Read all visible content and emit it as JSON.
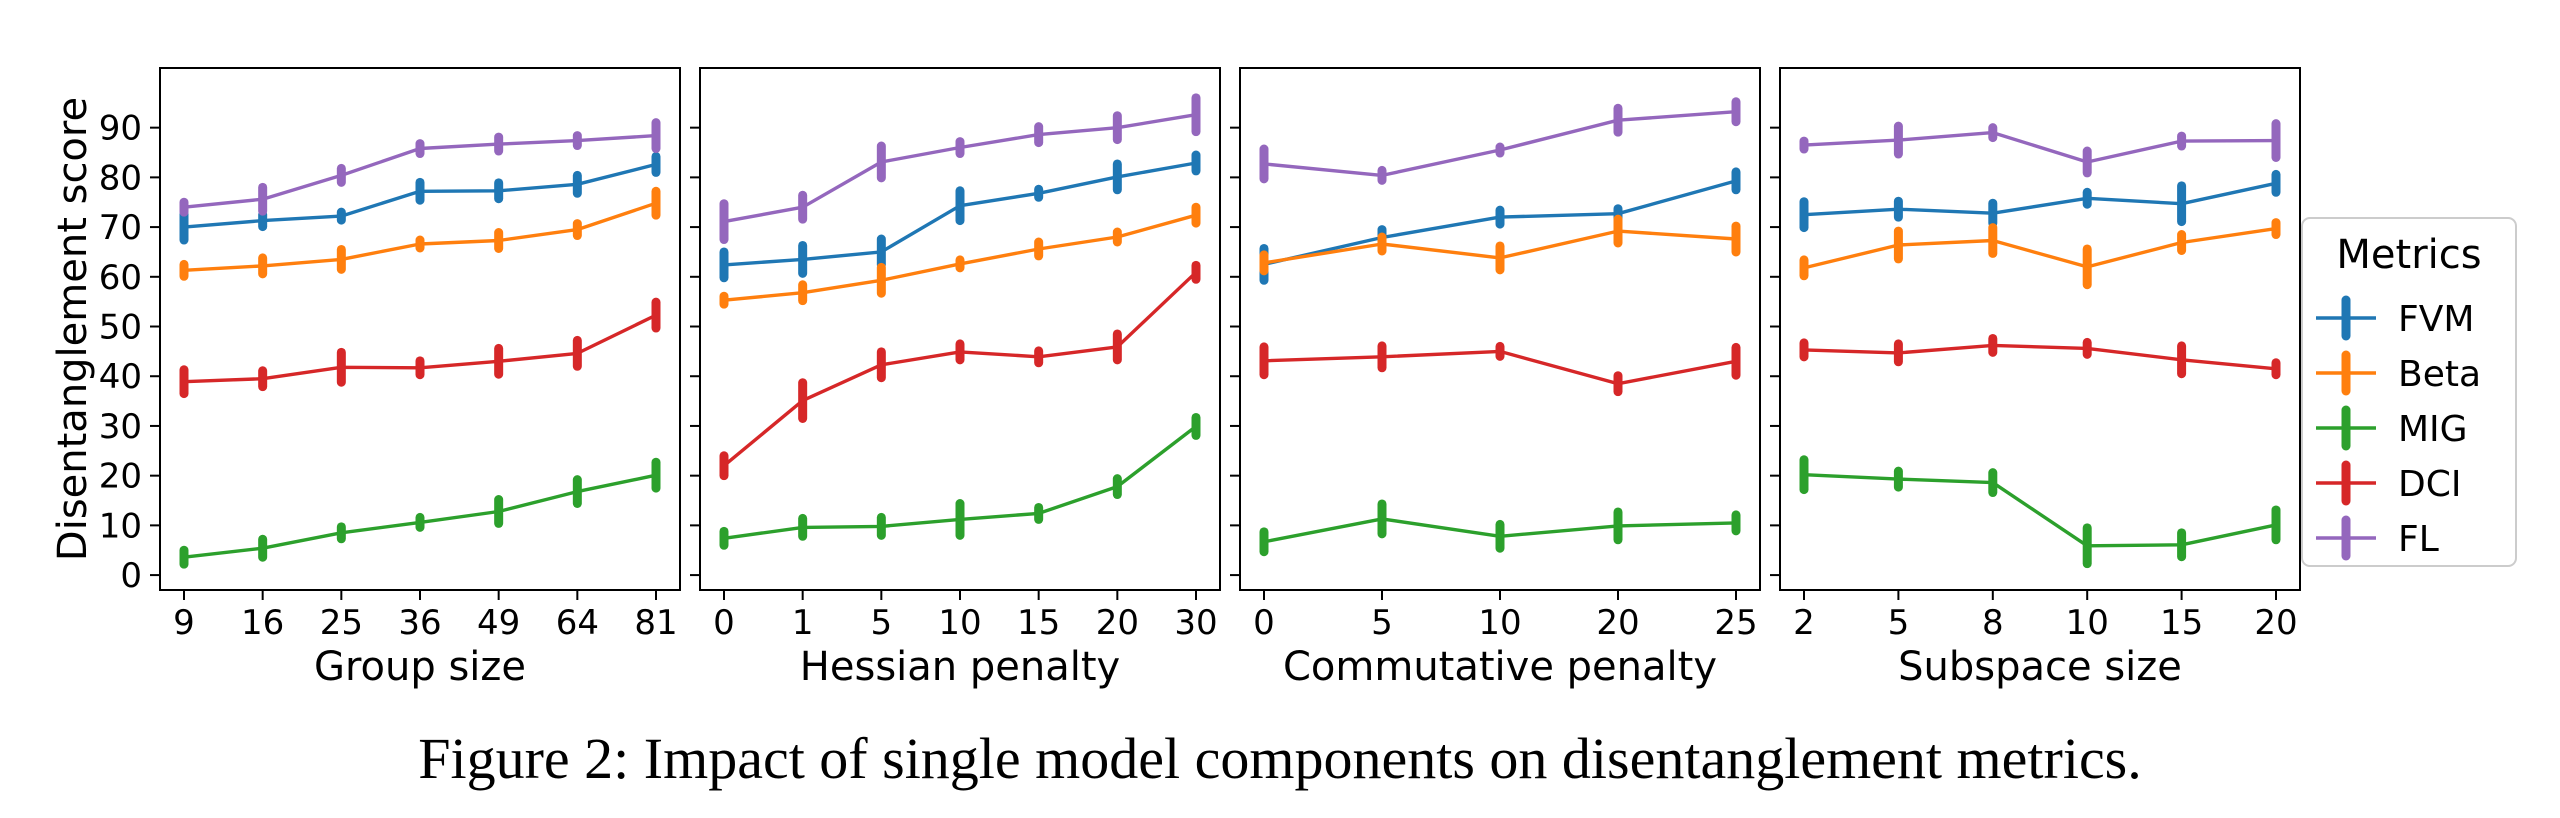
{
  "figure": {
    "ylabel": "Disentanglement score",
    "caption": "Figure 2: Impact of single model components on disentanglement metrics.",
    "legend": {
      "title": "Metrics",
      "placement": "right",
      "entries": [
        {
          "name": "FVM",
          "color": "#1f77b4"
        },
        {
          "name": "Beta",
          "color": "#ff7f0e"
        },
        {
          "name": "MIG",
          "color": "#2ca02c"
        },
        {
          "name": "DCI",
          "color": "#d62728"
        },
        {
          "name": "FL",
          "color": "#9467bd"
        }
      ]
    },
    "y_ticks": [
      "0",
      "10",
      "20",
      "30",
      "40",
      "50",
      "60",
      "70",
      "80",
      "90"
    ]
  },
  "chart_data": [
    {
      "type": "line",
      "xlabel": "Group size",
      "categories": [
        "9",
        "16",
        "25",
        "36",
        "49",
        "64",
        "81"
      ],
      "ylim": [
        -3,
        102
      ],
      "grid": false,
      "series": [
        {
          "name": "FVM",
          "values": [
            70,
            71.3,
            72.2,
            77.2,
            77.3,
            78.6,
            82.6
          ],
          "err": [
            2.6,
            1.2,
            0.8,
            1.8,
            1.6,
            1.8,
            1.6
          ]
        },
        {
          "name": "Beta",
          "values": [
            61.3,
            62.2,
            63.5,
            66.6,
            67.3,
            69.5,
            74.8
          ],
          "err": [
            1.2,
            1.6,
            2,
            0.8,
            1.6,
            1.2,
            2.4
          ]
        },
        {
          "name": "MIG",
          "values": [
            3.6,
            5.4,
            8.5,
            10.6,
            12.8,
            16.8,
            20.1
          ],
          "err": [
            1.4,
            1.8,
            1.2,
            1,
            2.4,
            2.4,
            2.6
          ]
        },
        {
          "name": "DCI",
          "values": [
            38.9,
            39.5,
            41.8,
            41.7,
            43,
            44.6,
            52.3
          ],
          "err": [
            2.4,
            1.6,
            3,
            1.4,
            2.6,
            2.6,
            2.6
          ]
        },
        {
          "name": "FL",
          "values": [
            74,
            75.6,
            80.4,
            85.8,
            86.7,
            87.4,
            88.4
          ],
          "err": [
            1,
            2.4,
            1.4,
            1,
            1.4,
            1,
            2.6
          ]
        }
      ]
    },
    {
      "type": "line",
      "xlabel": "Hessian penalty",
      "categories": [
        "0",
        "1",
        "5",
        "10",
        "15",
        "20",
        "30"
      ],
      "ylim": [
        -3,
        102
      ],
      "grid": false,
      "series": [
        {
          "name": "FVM",
          "values": [
            62.4,
            63.5,
            65,
            74.3,
            76.8,
            80.1,
            82.9
          ],
          "err": [
            2.6,
            2.8,
            2.6,
            3,
            0.8,
            2.6,
            1.6
          ]
        },
        {
          "name": "Beta",
          "values": [
            55.3,
            56.8,
            59.3,
            62.6,
            65.6,
            68,
            72.4
          ],
          "err": [
            0.8,
            1.6,
            2.6,
            0.8,
            1.4,
            1,
            1.6
          ]
        },
        {
          "name": "MIG",
          "values": [
            7.4,
            9.6,
            9.8,
            11.2,
            12.4,
            17.8,
            29.9
          ],
          "err": [
            1.4,
            1.8,
            1.8,
            3.2,
            1.2,
            1.6,
            1.8
          ]
        },
        {
          "name": "DCI",
          "values": [
            22,
            35.1,
            42.3,
            44.9,
            43.9,
            45.9,
            60.9
          ],
          "err": [
            2,
            3.6,
            2.6,
            1.6,
            1.2,
            2.6,
            1.4
          ]
        },
        {
          "name": "FL",
          "values": [
            71.1,
            74,
            83.1,
            86,
            88.6,
            90,
            92.6
          ],
          "err": [
            3.6,
            2.4,
            3.2,
            1.2,
            1.6,
            2.4,
            3.4
          ]
        }
      ]
    },
    {
      "type": "line",
      "xlabel": "Commutative penalty",
      "categories": [
        "0",
        "5",
        "10",
        "20",
        "25"
      ],
      "ylim": [
        -3,
        102
      ],
      "grid": false,
      "series": [
        {
          "name": "FVM",
          "values": [
            62.5,
            67.9,
            72,
            72.7,
            79.3
          ],
          "err": [
            3.2,
            1.6,
            1.4,
            1,
            1.8
          ]
        },
        {
          "name": "Beta",
          "values": [
            62.8,
            66.6,
            63.8,
            69.2,
            67.6
          ],
          "err": [
            1.6,
            1.4,
            2.4,
            2.4,
            2.6
          ]
        },
        {
          "name": "MIG",
          "values": [
            6.7,
            11.3,
            7.8,
            9.9,
            10.5
          ],
          "err": [
            2,
            3,
            2.4,
            2.8,
            1.6
          ]
        },
        {
          "name": "DCI",
          "values": [
            43.1,
            43.9,
            45,
            38.5,
            43
          ],
          "err": [
            2.8,
            2.2,
            1,
            1.6,
            2.8
          ]
        },
        {
          "name": "FL",
          "values": [
            82.7,
            80.4,
            85.5,
            91.5,
            93.2
          ],
          "err": [
            3,
            1,
            0.6,
            2.4,
            2
          ]
        }
      ]
    },
    {
      "type": "line",
      "xlabel": "Subspace size",
      "categories": [
        "2",
        "5",
        "8",
        "10",
        "15",
        "20"
      ],
      "ylim": [
        -3,
        102
      ],
      "grid": false,
      "series": [
        {
          "name": "FVM",
          "values": [
            72.5,
            73.6,
            72.8,
            75.8,
            74.7,
            78.8
          ],
          "err": [
            2.6,
            1.6,
            2,
            1.2,
            3.6,
            1.8
          ]
        },
        {
          "name": "Beta",
          "values": [
            61.8,
            66.4,
            67.3,
            62,
            66.9,
            69.7
          ],
          "err": [
            1.6,
            2.8,
            2.6,
            3.6,
            1.6,
            1.2
          ]
        },
        {
          "name": "MIG",
          "values": [
            20.2,
            19.3,
            18.6,
            5.9,
            6.1,
            10.1
          ],
          "err": [
            3,
            1.6,
            2,
            3.6,
            2.4,
            3
          ]
        },
        {
          "name": "DCI",
          "values": [
            45.3,
            44.7,
            46.2,
            45.6,
            43.3,
            41.5
          ],
          "err": [
            1.4,
            1.8,
            1.4,
            1.2,
            2.8,
            1.2
          ]
        },
        {
          "name": "FL",
          "values": [
            86.5,
            87.5,
            89,
            83.1,
            87.3,
            87.4
          ],
          "err": [
            0.8,
            2.8,
            1,
            2.2,
            1,
            3.4
          ]
        }
      ]
    }
  ]
}
